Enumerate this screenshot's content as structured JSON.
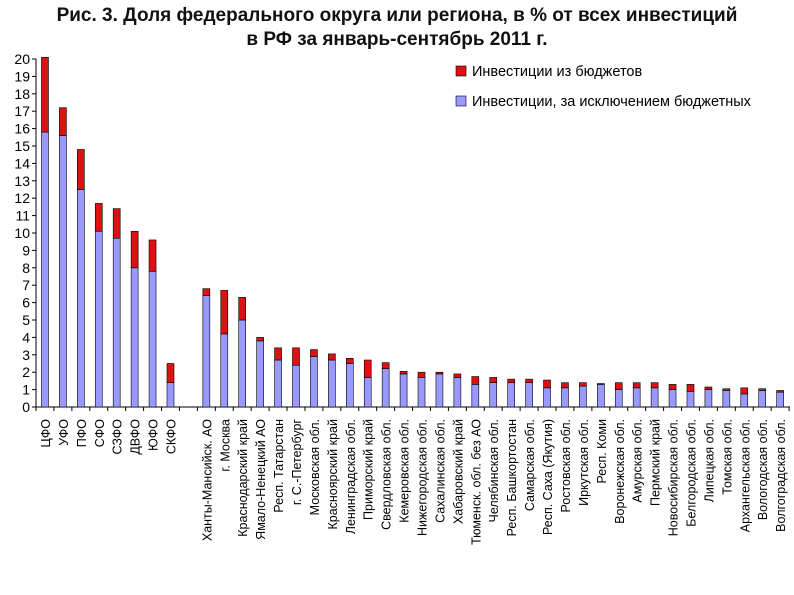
{
  "chart_data": {
    "type": "bar",
    "stacked": true,
    "title_line1": "Рис. 3. Доля федерального округа или региона, в % от всех инвестиций",
    "title_line2": "в РФ за январь-сентябрь 2011 г.",
    "xlabel": "",
    "ylabel": "",
    "ylim": [
      0,
      20
    ],
    "yticks": [
      0,
      1,
      2,
      3,
      4,
      5,
      6,
      7,
      8,
      9,
      10,
      11,
      12,
      13,
      14,
      15,
      16,
      17,
      18,
      19,
      20
    ],
    "grid": false,
    "legend_position": "top-right",
    "categories": [
      "ЦФО",
      "УФО",
      "ПФО",
      "СФО",
      "СЗФО",
      "ДВФО",
      "ЮФО",
      "СКФО",
      "",
      "Ханты-Мансийск. АО",
      "г. Москва",
      "Краснодарский край",
      "Ямало-Ненецкий АО",
      "Респ. Татарстан",
      "г. С.-Петербург",
      "Московская обл.",
      "Красноярский край",
      "Ленинградская обл.",
      "Приморский край",
      "Свердловская обл.",
      "Кемеровская обл.",
      "Нижегородская обл.",
      "Сахалинская обл.",
      "Хабаровский край",
      "Тюменск. обл. без АО",
      "Челябинская обл.",
      "Респ. Башкортостан",
      "Самарская обл.",
      "Респ. Саха (Якутия)",
      "Ростовская обл.",
      "Иркутская обл.",
      "Респ. Коми",
      "Воронежская обл.",
      "Амурская обл.",
      "Пермский край",
      "Новосибирская обл.",
      "Белгородская обл.",
      "Липецкая обл.",
      "Томская обл.",
      "Архангельская обл.",
      "Вологодская обл.",
      "Волгоградская обл."
    ],
    "series": [
      {
        "name": "Инвестиции, за исключением бюджетных",
        "color": "#9999ff",
        "values": [
          15.8,
          15.6,
          12.5,
          10.1,
          9.7,
          8.0,
          7.8,
          1.4,
          0,
          6.4,
          4.2,
          5.0,
          3.8,
          2.7,
          2.4,
          2.9,
          2.7,
          2.5,
          1.7,
          2.2,
          1.9,
          1.7,
          1.9,
          1.7,
          1.3,
          1.4,
          1.4,
          1.4,
          1.1,
          1.1,
          1.2,
          1.3,
          1.0,
          1.1,
          1.1,
          1.0,
          0.9,
          1.0,
          0.95,
          0.75,
          0.95,
          0.85
        ]
      },
      {
        "name": "Инвестиции из бюджетов",
        "color": "#dd1111",
        "values": [
          4.3,
          1.6,
          2.3,
          1.6,
          1.7,
          2.1,
          1.8,
          1.1,
          0,
          0.4,
          2.5,
          1.3,
          0.2,
          0.7,
          1.0,
          0.4,
          0.35,
          0.3,
          1.0,
          0.35,
          0.15,
          0.3,
          0.1,
          0.2,
          0.45,
          0.3,
          0.2,
          0.2,
          0.45,
          0.3,
          0.2,
          0.05,
          0.4,
          0.3,
          0.3,
          0.3,
          0.4,
          0.15,
          0.1,
          0.35,
          0.1,
          0.1
        ]
      }
    ]
  }
}
